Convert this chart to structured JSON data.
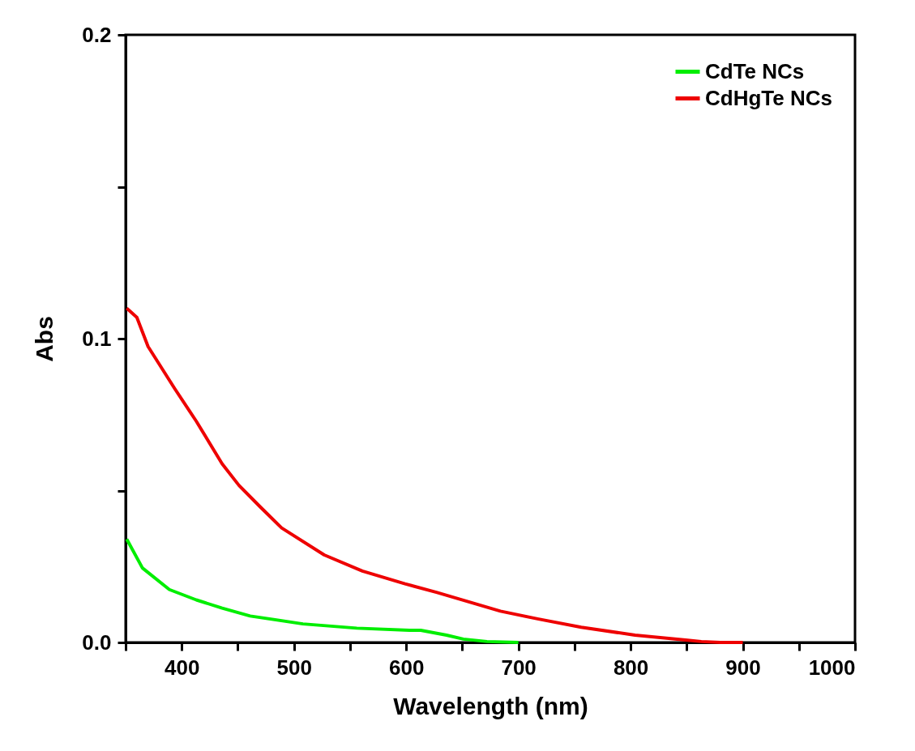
{
  "chart_data": {
    "type": "line",
    "xlabel": "Wavelength (nm)",
    "ylabel": "Abs",
    "xlim": [
      350,
      1000
    ],
    "ylim": [
      0,
      0.2
    ],
    "xticks": [
      {
        "value": 350,
        "label": null
      },
      400,
      {
        "value": 450,
        "label": null
      },
      500,
      {
        "value": 550,
        "label": null
      },
      600,
      {
        "value": 650,
        "label": null
      },
      700,
      {
        "value": 750,
        "label": null
      },
      800,
      {
        "value": 850,
        "label": null
      },
      900,
      {
        "value": 950,
        "label": null
      },
      1000
    ],
    "yticks": [
      {
        "value": 0,
        "label": "0.0"
      },
      {
        "value": 0.05,
        "label": null
      },
      0.1,
      {
        "value": 0.15,
        "label": null
      },
      0.2
    ],
    "grid": false,
    "legend": "top right",
    "line_style": "solid",
    "marker": "none",
    "series": [
      {
        "name": "CdTe NCs",
        "color": "#00ee00",
        "x": [
          351,
          365,
          389,
          413,
          436,
          461,
          508,
          556,
          603,
          613,
          636,
          651,
          672,
          700
        ],
        "values": [
          0.034,
          0.0245,
          0.0174,
          0.014,
          0.0113,
          0.0087,
          0.0061,
          0.0047,
          0.004,
          0.004,
          0.0024,
          0.0011,
          0.0003,
          0.0
        ]
      },
      {
        "name": "CdHgTe NCs",
        "color": "#ee0000",
        "x": [
          351,
          360,
          370,
          394,
          413,
          436,
          451,
          470,
          489,
          527,
          561,
          599,
          627,
          684,
          718,
          756,
          804,
          849,
          863,
          880,
          900
        ],
        "values": [
          0.11,
          0.107,
          0.0974,
          0.0834,
          0.0728,
          0.0588,
          0.0517,
          0.0446,
          0.0377,
          0.0288,
          0.0235,
          0.0193,
          0.0165,
          0.0103,
          0.0077,
          0.005,
          0.0024,
          0.0008,
          0.0003,
          0.0,
          0.0
        ]
      }
    ]
  }
}
